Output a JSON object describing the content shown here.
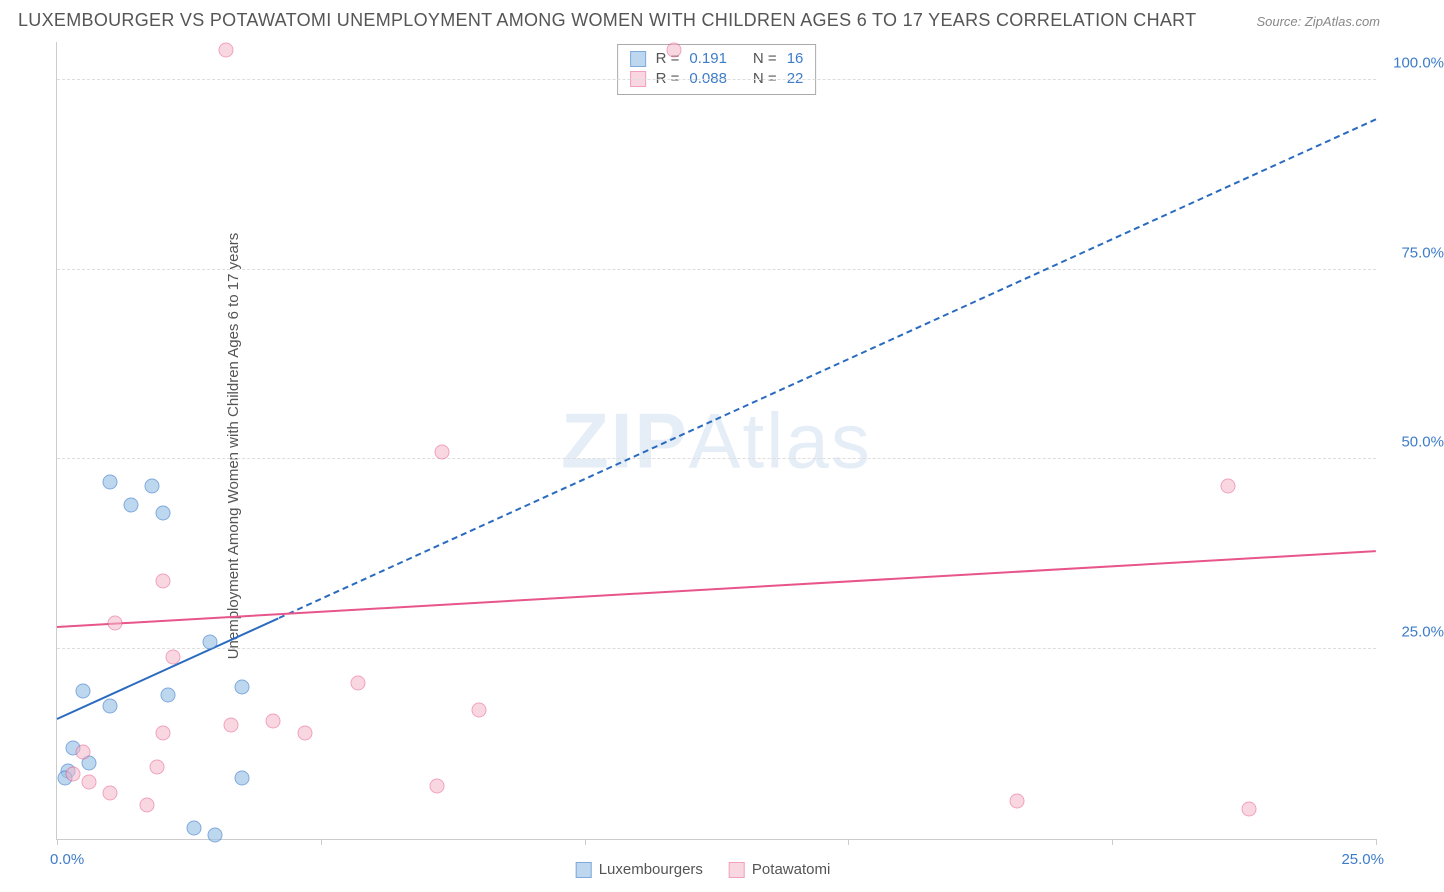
{
  "title": "LUXEMBOURGER VS POTAWATOMI UNEMPLOYMENT AMONG WOMEN WITH CHILDREN AGES 6 TO 17 YEARS CORRELATION CHART",
  "source": "Source: ZipAtlas.com",
  "ylabel": "Unemployment Among Women with Children Ages 6 to 17 years",
  "watermark_bold": "ZIP",
  "watermark_rest": "Atlas",
  "chart": {
    "type": "scatter",
    "background_color": "#ffffff",
    "grid_color": "#dddddd",
    "axis_color": "#cccccc",
    "tick_label_color": "#3d7cc9",
    "tick_fontsize": 15,
    "xlim": [
      0,
      25
    ],
    "ylim": [
      0,
      105
    ],
    "xtick_positions": [
      0,
      5,
      10,
      15,
      20,
      25
    ],
    "xtick_labels": [
      "0.0%",
      "",
      "",
      "",
      "",
      "25.0%"
    ],
    "ytick_positions": [
      25,
      50,
      75,
      100
    ],
    "ytick_labels": [
      "25.0%",
      "50.0%",
      "75.0%",
      "100.0%"
    ],
    "series": [
      {
        "name": "Luxembourgers",
        "marker_color_fill": "#9ac2e8",
        "marker_color_stroke": "#3d7cc9",
        "marker_opacity": 0.65,
        "marker_size": 15,
        "r_value": "0.191",
        "n_value": "16",
        "trend": {
          "x1": 0,
          "y1": 16,
          "x2": 25,
          "y2": 95,
          "color": "#2a6bbf",
          "dash_after_x": 4.2
        },
        "points": [
          {
            "x": 1.0,
            "y": 47
          },
          {
            "x": 1.8,
            "y": 46.5
          },
          {
            "x": 1.4,
            "y": 44
          },
          {
            "x": 2.0,
            "y": 43
          },
          {
            "x": 3.5,
            "y": 20
          },
          {
            "x": 2.1,
            "y": 19
          },
          {
            "x": 2.9,
            "y": 26
          },
          {
            "x": 0.5,
            "y": 19.5
          },
          {
            "x": 1.0,
            "y": 17.5
          },
          {
            "x": 0.3,
            "y": 12
          },
          {
            "x": 0.6,
            "y": 10
          },
          {
            "x": 0.2,
            "y": 9
          },
          {
            "x": 0.15,
            "y": 8
          },
          {
            "x": 3.5,
            "y": 8
          },
          {
            "x": 2.6,
            "y": 1.5
          },
          {
            "x": 3.0,
            "y": 0.5
          }
        ]
      },
      {
        "name": "Potawatomi",
        "marker_color_fill": "#f4b8c9",
        "marker_color_stroke": "#e7558a",
        "marker_opacity": 0.55,
        "marker_size": 15,
        "r_value": "0.088",
        "n_value": "22",
        "trend": {
          "x1": 0,
          "y1": 28,
          "x2": 25,
          "y2": 38,
          "color": "#e7558a"
        },
        "points": [
          {
            "x": 3.2,
            "y": 104
          },
          {
            "x": 11.7,
            "y": 104
          },
          {
            "x": 7.3,
            "y": 51
          },
          {
            "x": 22.2,
            "y": 46.5
          },
          {
            "x": 2.0,
            "y": 34
          },
          {
            "x": 1.1,
            "y": 28.5
          },
          {
            "x": 2.2,
            "y": 24
          },
          {
            "x": 5.7,
            "y": 20.5
          },
          {
            "x": 8.0,
            "y": 17
          },
          {
            "x": 3.3,
            "y": 15
          },
          {
            "x": 4.1,
            "y": 15.5
          },
          {
            "x": 2.0,
            "y": 14
          },
          {
            "x": 4.7,
            "y": 14
          },
          {
            "x": 0.5,
            "y": 11.5
          },
          {
            "x": 0.3,
            "y": 8.5
          },
          {
            "x": 1.9,
            "y": 9.5
          },
          {
            "x": 1.0,
            "y": 6
          },
          {
            "x": 1.7,
            "y": 4.5
          },
          {
            "x": 7.2,
            "y": 7
          },
          {
            "x": 18.2,
            "y": 5
          },
          {
            "x": 22.6,
            "y": 4
          },
          {
            "x": 0.6,
            "y": 7.5
          }
        ]
      }
    ]
  },
  "legend_top": {
    "r_label": "R =",
    "n_label": "N ="
  },
  "legend_bottom": {
    "items": [
      "Luxembourgers",
      "Potawatomi"
    ]
  }
}
